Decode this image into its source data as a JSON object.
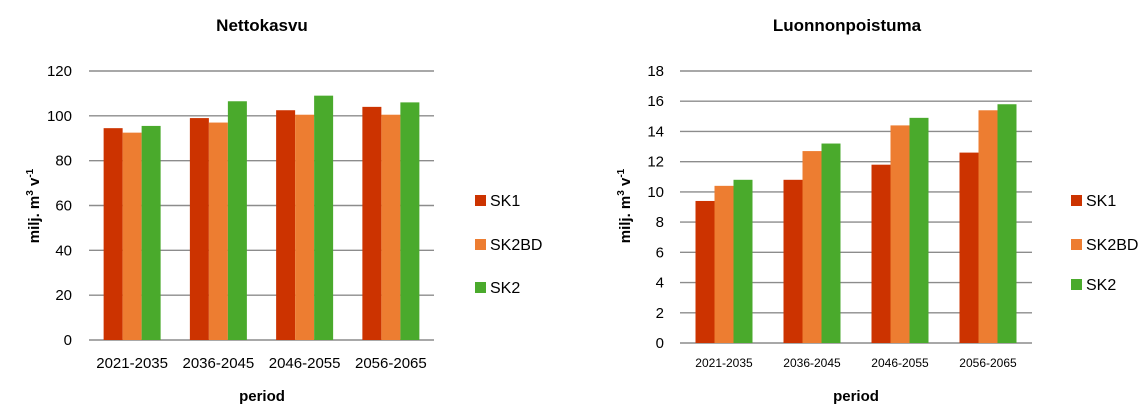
{
  "chart_data": [
    {
      "type": "bar",
      "title": "Nettokasvu",
      "xlabel": "period",
      "ylabel_main": "milj. m",
      "ylabel_sup1": "3",
      "ylabel_mid": " v",
      "ylabel_sup2": "-1",
      "ylim": [
        0,
        120
      ],
      "yticks": [
        0,
        20,
        40,
        60,
        80,
        100,
        120
      ],
      "grid": true,
      "legend_position": "right",
      "categories": [
        "2021-2035",
        "2036-2045",
        "2046-2055",
        "2056-2065"
      ],
      "series": [
        {
          "name": "SK1",
          "color": "#cc3300",
          "values": [
            94.5,
            99,
            102.5,
            104
          ]
        },
        {
          "name": "SK2BD",
          "color": "#ed7d31",
          "values": [
            92.5,
            97,
            100.5,
            100.5
          ]
        },
        {
          "name": "SK2",
          "color": "#4aaa2c",
          "values": [
            95.5,
            106.5,
            109,
            106
          ]
        }
      ]
    },
    {
      "type": "bar",
      "title": "Luonnonpoistuma",
      "xlabel": "period",
      "ylabel_main": "milj. m",
      "ylabel_sup1": "3",
      "ylabel_mid": " v",
      "ylabel_sup2": "-1",
      "ylim": [
        0,
        18
      ],
      "yticks": [
        0,
        2,
        4,
        6,
        8,
        10,
        12,
        14,
        16,
        18
      ],
      "grid": true,
      "legend_position": "right",
      "categories": [
        "2021-2035",
        "2036-2045",
        "2046-2055",
        "2056-2065"
      ],
      "series": [
        {
          "name": "SK1",
          "color": "#cc3300",
          "values": [
            9.4,
            10.8,
            11.8,
            12.6
          ]
        },
        {
          "name": "SK2BD",
          "color": "#ed7d31",
          "values": [
            10.4,
            12.7,
            14.4,
            15.4
          ]
        },
        {
          "name": "SK2",
          "color": "#4aaa2c",
          "values": [
            10.8,
            13.2,
            14.9,
            15.8
          ]
        }
      ]
    }
  ]
}
